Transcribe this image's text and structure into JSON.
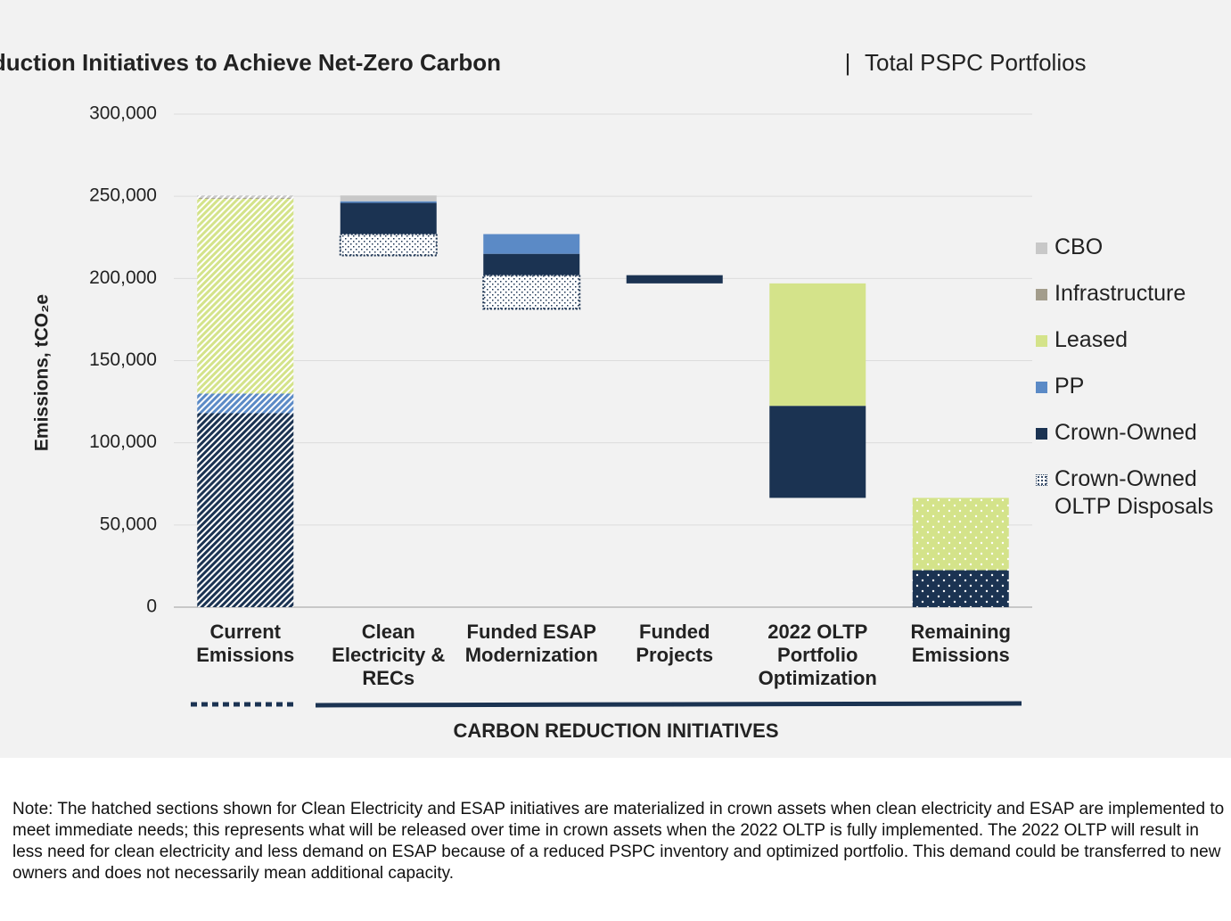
{
  "chart_data": {
    "type": "waterfall",
    "title": "Carbon Reduction Initiatives to Achieve Net-Zero Carbon",
    "title_separator": "|",
    "subtitle": "Total PSPC Portfolios",
    "y_label": "Emissions, tCO₂e",
    "group_label": "CARBON REDUCTION INITIATIVES",
    "categories": [
      "Current Emissions",
      "Clean Electricity & RECs",
      "Funded ESAP Modernization",
      "Funded Projects",
      "2022 OLTP Portfolio Optimization",
      "Remaining Emissions"
    ],
    "series": [
      {
        "name": "CBO",
        "color": "#c8c8c8",
        "values": [
          1500,
          3500,
          null,
          null,
          null,
          null
        ]
      },
      {
        "name": "Infrastructure",
        "color": "#a39d8c",
        "values": [
          500,
          null,
          null,
          null,
          null,
          null
        ]
      },
      {
        "name": "Leased",
        "color": "#d4e38a",
        "values": [
          118500,
          null,
          null,
          null,
          74500,
          44000
        ]
      },
      {
        "name": "PP",
        "color": "#5b8ac6",
        "values": [
          12000,
          1000,
          12000,
          null,
          null,
          null
        ]
      },
      {
        "name": "Crown-Owned",
        "color": "#1b3352",
        "values": [
          118000,
          19000,
          13000,
          5000,
          56000,
          22500
        ]
      },
      {
        "name": "Crown-Owned OLTP Disposals",
        "color": "#1b3352",
        "values": [
          null,
          13000,
          20500,
          null,
          null,
          null
        ]
      }
    ],
    "ylim": [
      0,
      300000
    ],
    "yticks": [
      0,
      {
        "value": 50000,
        "label": "50,000"
      },
      {
        "value": 100000,
        "label": "100,000"
      },
      {
        "value": 150000,
        "label": "150,000"
      },
      {
        "value": 200000,
        "label": "200,000"
      },
      {
        "value": 250000,
        "label": "250,000"
      },
      {
        "value": 300000,
        "label": "300,000"
      }
    ],
    "grid": true,
    "legend": "right"
  },
  "note": "Note: The hatched sections shown for Clean Electricity and ESAP initiatives are materialized in crown assets when clean electricity and ESAP are implemented to meet immediate needs; this represents what will be released over time in crown assets when the 2022 OLTP is fully implemented. The 2022 OLTP will result in less need for clean electricity and less demand on ESAP because of a reduced PSPC inventory and optimized portfolio. This demand could be transferred to new owners and does not necessarily mean additional capacity."
}
